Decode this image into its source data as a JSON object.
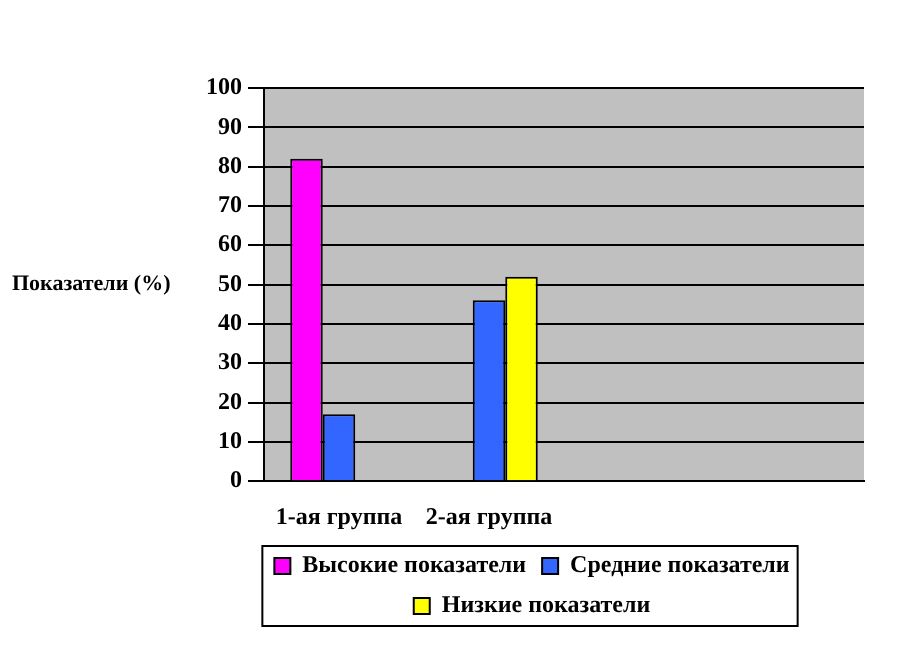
{
  "chart_data": {
    "type": "bar",
    "ylabel": "Показатели (%)",
    "categories": [
      "1-ая группа",
      "2-ая группа",
      null,
      null
    ],
    "series": [
      {
        "name": "Высокие показатели",
        "color": "#ff00ff",
        "values": [
          82,
          0,
          null,
          null
        ]
      },
      {
        "name": "Средние показатели",
        "color": "#3366ff",
        "values": [
          17,
          46,
          null,
          null
        ]
      },
      {
        "name": "Низкие показатели",
        "color": "#ffff00",
        "values": [
          0,
          52,
          null,
          null
        ]
      }
    ],
    "ylim": [
      0,
      100
    ],
    "yticks": [
      0,
      10,
      20,
      30,
      40,
      50,
      60,
      70,
      80,
      90,
      100
    ],
    "grid": "y",
    "legend": "bottom"
  }
}
